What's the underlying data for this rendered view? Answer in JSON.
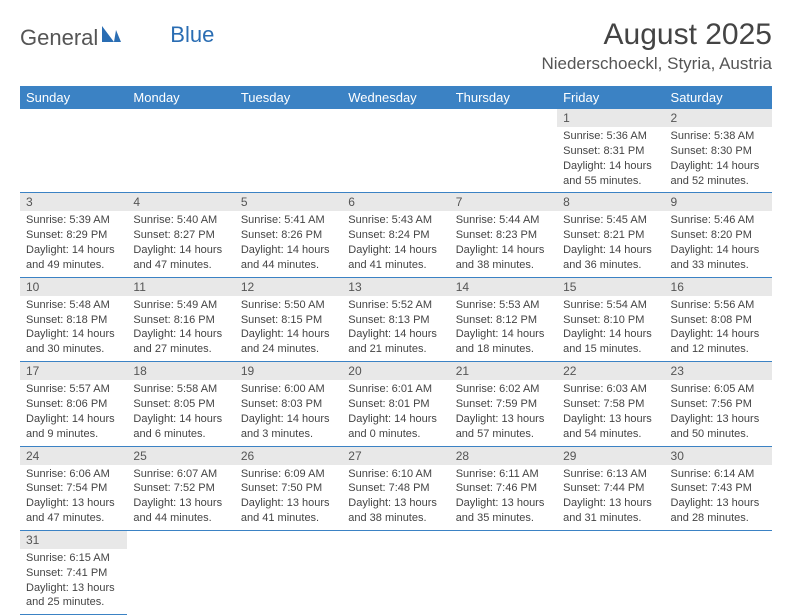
{
  "brand": {
    "part1": "General",
    "part2": "Blue"
  },
  "title": {
    "month": "August 2025",
    "location": "Niederschoeckl, Styria, Austria"
  },
  "colors": {
    "header_bg": "#3b82c4",
    "header_text": "#ffffff",
    "daynum_bg": "#e8e8e8",
    "row_border": "#3b82c4",
    "text": "#444444",
    "logo_blue": "#2a6db3"
  },
  "typography": {
    "month_fontsize": 30,
    "location_fontsize": 17,
    "header_fontsize": 13,
    "daynum_fontsize": 12,
    "body_fontsize": 11
  },
  "weekdays": [
    "Sunday",
    "Monday",
    "Tuesday",
    "Wednesday",
    "Thursday",
    "Friday",
    "Saturday"
  ],
  "weeks": [
    [
      null,
      null,
      null,
      null,
      null,
      {
        "n": "1",
        "sr": "Sunrise: 5:36 AM",
        "ss": "Sunset: 8:31 PM",
        "d1": "Daylight: 14 hours",
        "d2": "and 55 minutes."
      },
      {
        "n": "2",
        "sr": "Sunrise: 5:38 AM",
        "ss": "Sunset: 8:30 PM",
        "d1": "Daylight: 14 hours",
        "d2": "and 52 minutes."
      }
    ],
    [
      {
        "n": "3",
        "sr": "Sunrise: 5:39 AM",
        "ss": "Sunset: 8:29 PM",
        "d1": "Daylight: 14 hours",
        "d2": "and 49 minutes."
      },
      {
        "n": "4",
        "sr": "Sunrise: 5:40 AM",
        "ss": "Sunset: 8:27 PM",
        "d1": "Daylight: 14 hours",
        "d2": "and 47 minutes."
      },
      {
        "n": "5",
        "sr": "Sunrise: 5:41 AM",
        "ss": "Sunset: 8:26 PM",
        "d1": "Daylight: 14 hours",
        "d2": "and 44 minutes."
      },
      {
        "n": "6",
        "sr": "Sunrise: 5:43 AM",
        "ss": "Sunset: 8:24 PM",
        "d1": "Daylight: 14 hours",
        "d2": "and 41 minutes."
      },
      {
        "n": "7",
        "sr": "Sunrise: 5:44 AM",
        "ss": "Sunset: 8:23 PM",
        "d1": "Daylight: 14 hours",
        "d2": "and 38 minutes."
      },
      {
        "n": "8",
        "sr": "Sunrise: 5:45 AM",
        "ss": "Sunset: 8:21 PM",
        "d1": "Daylight: 14 hours",
        "d2": "and 36 minutes."
      },
      {
        "n": "9",
        "sr": "Sunrise: 5:46 AM",
        "ss": "Sunset: 8:20 PM",
        "d1": "Daylight: 14 hours",
        "d2": "and 33 minutes."
      }
    ],
    [
      {
        "n": "10",
        "sr": "Sunrise: 5:48 AM",
        "ss": "Sunset: 8:18 PM",
        "d1": "Daylight: 14 hours",
        "d2": "and 30 minutes."
      },
      {
        "n": "11",
        "sr": "Sunrise: 5:49 AM",
        "ss": "Sunset: 8:16 PM",
        "d1": "Daylight: 14 hours",
        "d2": "and 27 minutes."
      },
      {
        "n": "12",
        "sr": "Sunrise: 5:50 AM",
        "ss": "Sunset: 8:15 PM",
        "d1": "Daylight: 14 hours",
        "d2": "and 24 minutes."
      },
      {
        "n": "13",
        "sr": "Sunrise: 5:52 AM",
        "ss": "Sunset: 8:13 PM",
        "d1": "Daylight: 14 hours",
        "d2": "and 21 minutes."
      },
      {
        "n": "14",
        "sr": "Sunrise: 5:53 AM",
        "ss": "Sunset: 8:12 PM",
        "d1": "Daylight: 14 hours",
        "d2": "and 18 minutes."
      },
      {
        "n": "15",
        "sr": "Sunrise: 5:54 AM",
        "ss": "Sunset: 8:10 PM",
        "d1": "Daylight: 14 hours",
        "d2": "and 15 minutes."
      },
      {
        "n": "16",
        "sr": "Sunrise: 5:56 AM",
        "ss": "Sunset: 8:08 PM",
        "d1": "Daylight: 14 hours",
        "d2": "and 12 minutes."
      }
    ],
    [
      {
        "n": "17",
        "sr": "Sunrise: 5:57 AM",
        "ss": "Sunset: 8:06 PM",
        "d1": "Daylight: 14 hours",
        "d2": "and 9 minutes."
      },
      {
        "n": "18",
        "sr": "Sunrise: 5:58 AM",
        "ss": "Sunset: 8:05 PM",
        "d1": "Daylight: 14 hours",
        "d2": "and 6 minutes."
      },
      {
        "n": "19",
        "sr": "Sunrise: 6:00 AM",
        "ss": "Sunset: 8:03 PM",
        "d1": "Daylight: 14 hours",
        "d2": "and 3 minutes."
      },
      {
        "n": "20",
        "sr": "Sunrise: 6:01 AM",
        "ss": "Sunset: 8:01 PM",
        "d1": "Daylight: 14 hours",
        "d2": "and 0 minutes."
      },
      {
        "n": "21",
        "sr": "Sunrise: 6:02 AM",
        "ss": "Sunset: 7:59 PM",
        "d1": "Daylight: 13 hours",
        "d2": "and 57 minutes."
      },
      {
        "n": "22",
        "sr": "Sunrise: 6:03 AM",
        "ss": "Sunset: 7:58 PM",
        "d1": "Daylight: 13 hours",
        "d2": "and 54 minutes."
      },
      {
        "n": "23",
        "sr": "Sunrise: 6:05 AM",
        "ss": "Sunset: 7:56 PM",
        "d1": "Daylight: 13 hours",
        "d2": "and 50 minutes."
      }
    ],
    [
      {
        "n": "24",
        "sr": "Sunrise: 6:06 AM",
        "ss": "Sunset: 7:54 PM",
        "d1": "Daylight: 13 hours",
        "d2": "and 47 minutes."
      },
      {
        "n": "25",
        "sr": "Sunrise: 6:07 AM",
        "ss": "Sunset: 7:52 PM",
        "d1": "Daylight: 13 hours",
        "d2": "and 44 minutes."
      },
      {
        "n": "26",
        "sr": "Sunrise: 6:09 AM",
        "ss": "Sunset: 7:50 PM",
        "d1": "Daylight: 13 hours",
        "d2": "and 41 minutes."
      },
      {
        "n": "27",
        "sr": "Sunrise: 6:10 AM",
        "ss": "Sunset: 7:48 PM",
        "d1": "Daylight: 13 hours",
        "d2": "and 38 minutes."
      },
      {
        "n": "28",
        "sr": "Sunrise: 6:11 AM",
        "ss": "Sunset: 7:46 PM",
        "d1": "Daylight: 13 hours",
        "d2": "and 35 minutes."
      },
      {
        "n": "29",
        "sr": "Sunrise: 6:13 AM",
        "ss": "Sunset: 7:44 PM",
        "d1": "Daylight: 13 hours",
        "d2": "and 31 minutes."
      },
      {
        "n": "30",
        "sr": "Sunrise: 6:14 AM",
        "ss": "Sunset: 7:43 PM",
        "d1": "Daylight: 13 hours",
        "d2": "and 28 minutes."
      }
    ],
    [
      {
        "n": "31",
        "sr": "Sunrise: 6:15 AM",
        "ss": "Sunset: 7:41 PM",
        "d1": "Daylight: 13 hours",
        "d2": "and 25 minutes."
      },
      null,
      null,
      null,
      null,
      null,
      null
    ]
  ]
}
